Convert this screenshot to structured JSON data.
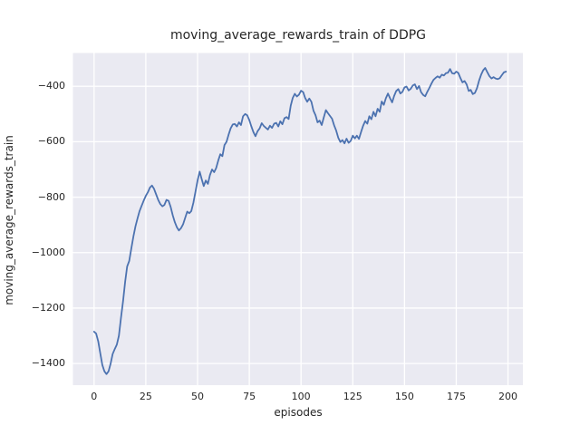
{
  "colors": {
    "figure_background": "#FFFFFF",
    "plot_background": "#EAEAF2",
    "gridline": "#FFFFFF",
    "line": "#4C72B0",
    "text": "#262626"
  },
  "chart_data": {
    "type": "line",
    "title": "moving_average_rewards_train of DDPG",
    "xlabel": "episodes",
    "ylabel": "moving_average_rewards_train",
    "grid": true,
    "legend": "none",
    "xlim": [
      -10.2,
      207.2
    ],
    "ylim": [
      -1478,
      -280
    ],
    "x_ticks": {
      "values": [
        0,
        25,
        50,
        75,
        100,
        125,
        150,
        175,
        200
      ],
      "labels": [
        "0",
        "25",
        "50",
        "75",
        "100",
        "125",
        "150",
        "175",
        "200"
      ]
    },
    "y_ticks": {
      "values": [
        -1400,
        -1200,
        -1000,
        -800,
        -600,
        -400
      ],
      "labels": [
        "−1400",
        "−1200",
        "−1000",
        "−800",
        "−600",
        "−400"
      ]
    },
    "x_description": "episode index, one point per episode from 0 to 199",
    "series": [
      {
        "name": "DDPG moving average rewards (train)",
        "color": "#4C72B0",
        "values": [
          -1285,
          -1292,
          -1320,
          -1362,
          -1405,
          -1428,
          -1438,
          -1428,
          -1400,
          -1366,
          -1348,
          -1332,
          -1300,
          -1235,
          -1175,
          -1105,
          -1050,
          -1030,
          -985,
          -942,
          -905,
          -876,
          -850,
          -831,
          -812,
          -795,
          -782,
          -765,
          -758,
          -770,
          -790,
          -810,
          -825,
          -833,
          -828,
          -810,
          -813,
          -835,
          -865,
          -890,
          -908,
          -920,
          -912,
          -898,
          -875,
          -852,
          -858,
          -850,
          -820,
          -780,
          -740,
          -708,
          -735,
          -760,
          -740,
          -752,
          -720,
          -700,
          -710,
          -695,
          -668,
          -645,
          -652,
          -612,
          -600,
          -575,
          -552,
          -538,
          -536,
          -545,
          -530,
          -540,
          -508,
          -500,
          -505,
          -522,
          -545,
          -565,
          -580,
          -562,
          -552,
          -533,
          -543,
          -550,
          -556,
          -542,
          -550,
          -535,
          -532,
          -545,
          -526,
          -537,
          -515,
          -511,
          -518,
          -470,
          -442,
          -427,
          -437,
          -430,
          -416,
          -421,
          -442,
          -456,
          -444,
          -456,
          -488,
          -505,
          -530,
          -524,
          -540,
          -512,
          -486,
          -497,
          -507,
          -517,
          -541,
          -560,
          -586,
          -601,
          -594,
          -606,
          -589,
          -604,
          -597,
          -578,
          -588,
          -578,
          -590,
          -565,
          -542,
          -525,
          -535,
          -508,
          -519,
          -492,
          -508,
          -481,
          -492,
          -455,
          -467,
          -443,
          -426,
          -443,
          -458,
          -435,
          -417,
          -410,
          -426,
          -420,
          -404,
          -401,
          -415,
          -409,
          -397,
          -393,
          -410,
          -399,
          -421,
          -431,
          -436,
          -420,
          -406,
          -390,
          -377,
          -370,
          -364,
          -369,
          -358,
          -361,
          -353,
          -351,
          -338,
          -353,
          -355,
          -347,
          -352,
          -370,
          -386,
          -381,
          -393,
          -417,
          -413,
          -428,
          -424,
          -407,
          -380,
          -358,
          -342,
          -334,
          -349,
          -363,
          -372,
          -367,
          -372,
          -374,
          -371,
          -360,
          -350,
          -347
        ]
      }
    ]
  }
}
